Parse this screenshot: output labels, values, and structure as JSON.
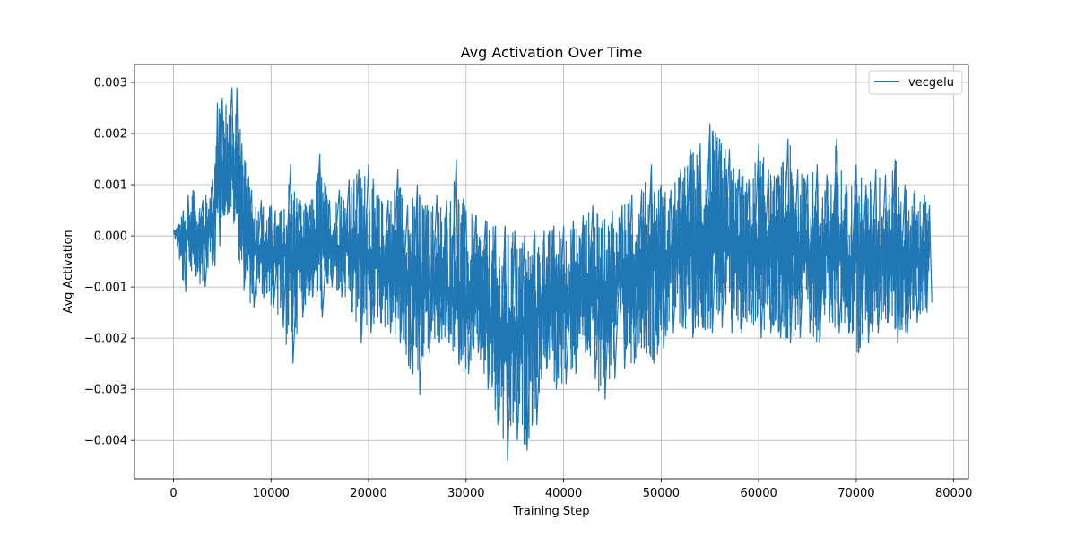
{
  "chart_data": {
    "type": "line",
    "title": "Avg Activation Over Time",
    "xlabel": "Training Step",
    "ylabel": "Avg Activation",
    "xlim": [
      -4000,
      81500
    ],
    "ylim": [
      -0.00475,
      0.00335
    ],
    "x_ticks": [
      0,
      10000,
      20000,
      30000,
      40000,
      50000,
      60000,
      70000,
      80000
    ],
    "x_tick_labels": [
      "0",
      "10000",
      "20000",
      "30000",
      "40000",
      "50000",
      "60000",
      "70000",
      "80000"
    ],
    "y_ticks": [
      0.003,
      0.002,
      0.001,
      0.0,
      -0.001,
      -0.002,
      -0.003,
      -0.004
    ],
    "y_tick_labels": [
      "0.003",
      "0.002",
      "0.001",
      "0.000",
      "−0.001",
      "−0.002",
      "−0.003",
      "−0.004"
    ],
    "grid": true,
    "legend_position": "top-right",
    "series": [
      {
        "name": "vecgelu",
        "color": "#1f77b4",
        "envelope": {
          "x": [
            0,
            500,
            1000,
            1500,
            2000,
            3000,
            4000,
            4500,
            5000,
            6000,
            6500,
            7000,
            8000,
            9000,
            10000,
            11000,
            12000,
            13000,
            14000,
            15000,
            16000,
            17000,
            18000,
            19000,
            20000,
            21000,
            22000,
            23000,
            24000,
            25000,
            26000,
            27000,
            28000,
            29000,
            30000,
            31000,
            32000,
            33000,
            34000,
            35000,
            36000,
            37000,
            38000,
            39000,
            40000,
            41000,
            42000,
            43000,
            44000,
            45000,
            46000,
            47000,
            48000,
            49000,
            50000,
            51000,
            52000,
            53000,
            54000,
            55000,
            56000,
            57000,
            58000,
            59000,
            60000,
            61000,
            62000,
            63000,
            64000,
            65000,
            66000,
            67000,
            68000,
            69000,
            70000,
            71000,
            72000,
            73000,
            74000,
            75000,
            76000,
            77000,
            77500
          ],
          "upper": [
            0.0001,
            0.0002,
            0.0005,
            0.0008,
            0.0009,
            0.0007,
            0.0011,
            0.0026,
            0.0027,
            0.0029,
            0.0029,
            0.0018,
            0.0009,
            0.0007,
            0.0006,
            0.0005,
            0.0014,
            0.0007,
            0.0006,
            0.0016,
            0.0007,
            0.0009,
            0.0011,
            0.0013,
            0.0014,
            0.0008,
            0.0007,
            0.0013,
            0.0006,
            0.001,
            0.0006,
            0.0008,
            0.0007,
            0.0015,
            0.0005,
            0.0004,
            0.0003,
            0.0002,
            0.0002,
            0.0001,
            0.0,
            0.0001,
            0.0001,
            0.0002,
            0.0002,
            0.0003,
            0.0004,
            0.0006,
            0.0003,
            0.0005,
            0.0006,
            0.0008,
            0.0009,
            0.0014,
            0.001,
            0.0009,
            0.0013,
            0.0017,
            0.0018,
            0.0022,
            0.0019,
            0.0017,
            0.0013,
            0.0011,
            0.0018,
            0.0013,
            0.0012,
            0.0019,
            0.0013,
            0.0012,
            0.0014,
            0.0012,
            0.0019,
            0.001,
            0.0014,
            0.001,
            0.0013,
            0.0012,
            0.0015,
            0.001,
            0.0009,
            0.0008,
            0.0006
          ],
          "lower": [
            0.0001,
            -0.0004,
            -0.0011,
            -0.0006,
            -0.0008,
            -0.001,
            -0.0006,
            -0.0002,
            0.0004,
            0.0003,
            -0.0003,
            -0.001,
            -0.0014,
            -0.0012,
            -0.0014,
            -0.0018,
            -0.0025,
            -0.0016,
            -0.0012,
            -0.0016,
            -0.001,
            -0.0012,
            -0.0015,
            -0.0021,
            -0.0019,
            -0.0017,
            -0.0019,
            -0.0021,
            -0.0026,
            -0.0031,
            -0.0023,
            -0.0021,
            -0.0021,
            -0.0025,
            -0.0027,
            -0.0023,
            -0.003,
            -0.0037,
            -0.0044,
            -0.004,
            -0.0042,
            -0.0037,
            -0.0026,
            -0.003,
            -0.0029,
            -0.0027,
            -0.0023,
            -0.0028,
            -0.0032,
            -0.0028,
            -0.0026,
            -0.0025,
            -0.0022,
            -0.0025,
            -0.0022,
            -0.0019,
            -0.0018,
            -0.002,
            -0.0018,
            -0.0019,
            -0.0018,
            -0.0019,
            -0.0019,
            -0.0017,
            -0.002,
            -0.0019,
            -0.002,
            -0.0021,
            -0.002,
            -0.0019,
            -0.0021,
            -0.0017,
            -0.0019,
            -0.0019,
            -0.0023,
            -0.0021,
            -0.0019,
            -0.0017,
            -0.0021,
            -0.0019,
            -0.0017,
            -0.0015,
            -0.0013
          ],
          "mean": [
            0.0001,
            0.0,
            -0.0002,
            0.0,
            0.0001,
            0.0,
            0.0003,
            0.001,
            0.0012,
            0.0013,
            0.001,
            0.0003,
            -0.0002,
            -0.0003,
            -0.0003,
            -0.0004,
            -0.0004,
            -0.0004,
            -0.0003,
            -0.0002,
            -0.0002,
            -0.0002,
            -0.0003,
            -0.0003,
            -0.0004,
            -0.0005,
            -0.0006,
            -0.0006,
            -0.0007,
            -0.0009,
            -0.001,
            -0.001,
            -0.0011,
            -0.0012,
            -0.0013,
            -0.0013,
            -0.0015,
            -0.0017,
            -0.002,
            -0.0019,
            -0.0018,
            -0.0016,
            -0.0013,
            -0.0012,
            -0.0012,
            -0.0011,
            -0.001,
            -0.001,
            -0.001,
            -0.0009,
            -0.0008,
            -0.0007,
            -0.0006,
            -0.0005,
            -0.0004,
            -0.0004,
            -0.0003,
            -0.0002,
            -0.0002,
            -0.0001,
            -0.0002,
            -0.0002,
            -0.0003,
            -0.0003,
            -0.0002,
            -0.0003,
            -0.0003,
            -0.0003,
            -0.0003,
            -0.0003,
            -0.0004,
            -0.0003,
            -0.0003,
            -0.0004,
            -0.0004,
            -0.0005,
            -0.0004,
            -0.0003,
            -0.0004,
            -0.0005,
            -0.0004,
            -0.0004,
            -0.0004
          ]
        }
      }
    ]
  }
}
